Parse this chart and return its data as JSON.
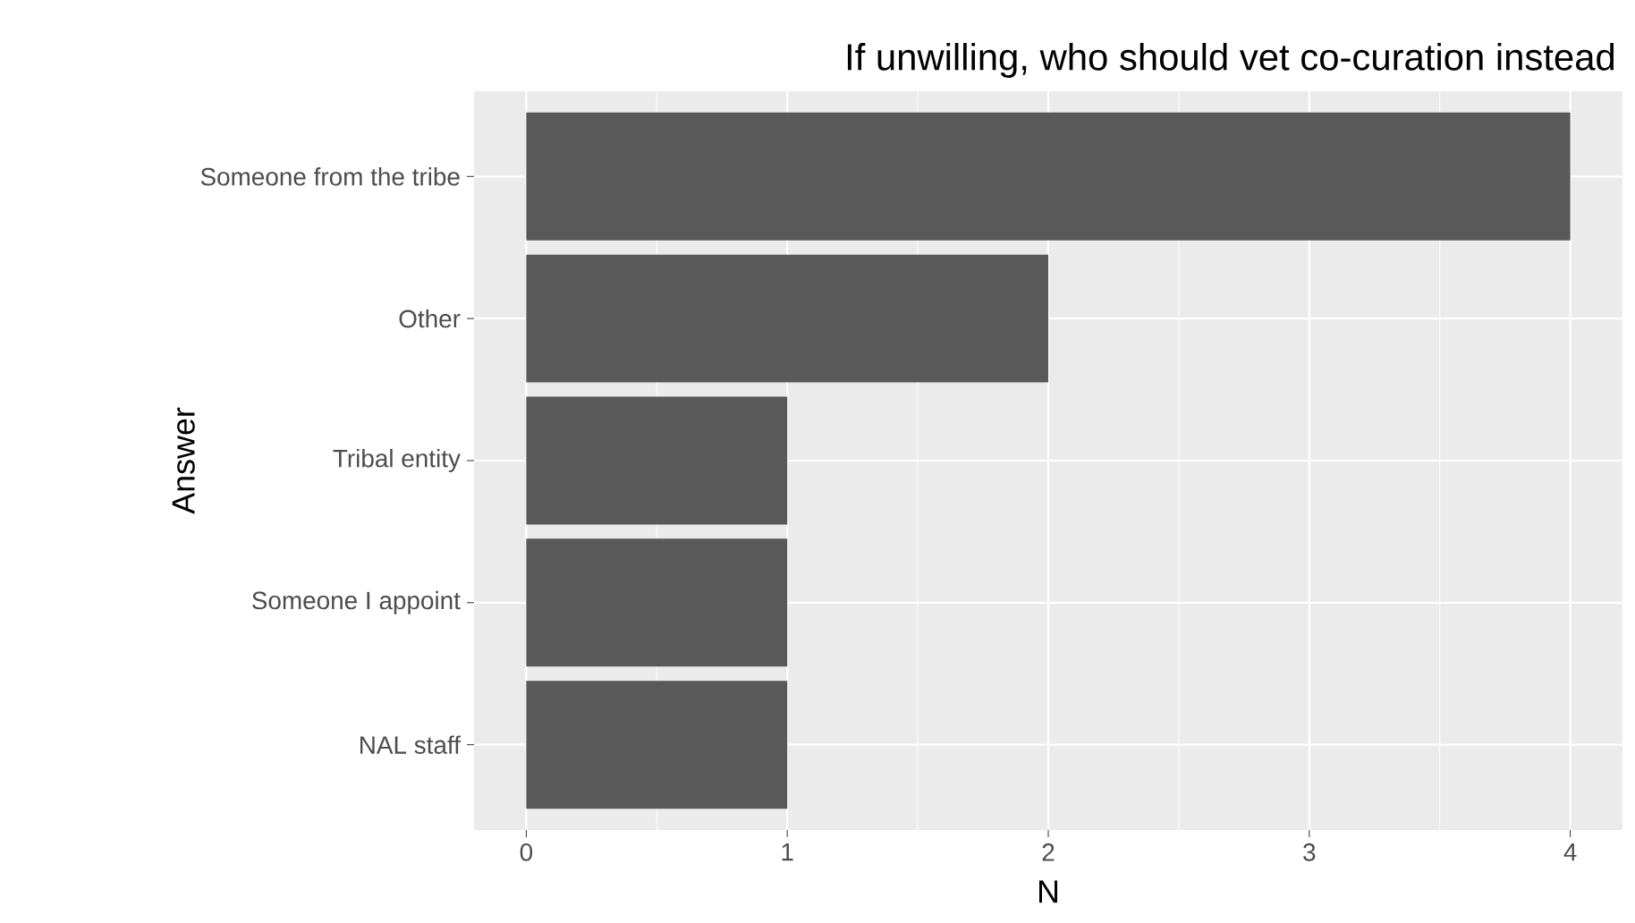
{
  "chart_data": {
    "type": "bar",
    "orientation": "horizontal",
    "title": "If unwilling, who should vet co-curation instead",
    "xlabel": "N",
    "ylabel": "Answer",
    "categories": [
      "Someone from the tribe",
      "Other",
      "Tribal entity",
      "Someone I appoint",
      "NAL staff"
    ],
    "values": [
      4,
      2,
      1,
      1,
      1
    ],
    "color": "#595959",
    "xlim": [
      -0.2,
      4.2
    ],
    "xticks": [
      0,
      1,
      2,
      3,
      4
    ],
    "grid": true
  }
}
